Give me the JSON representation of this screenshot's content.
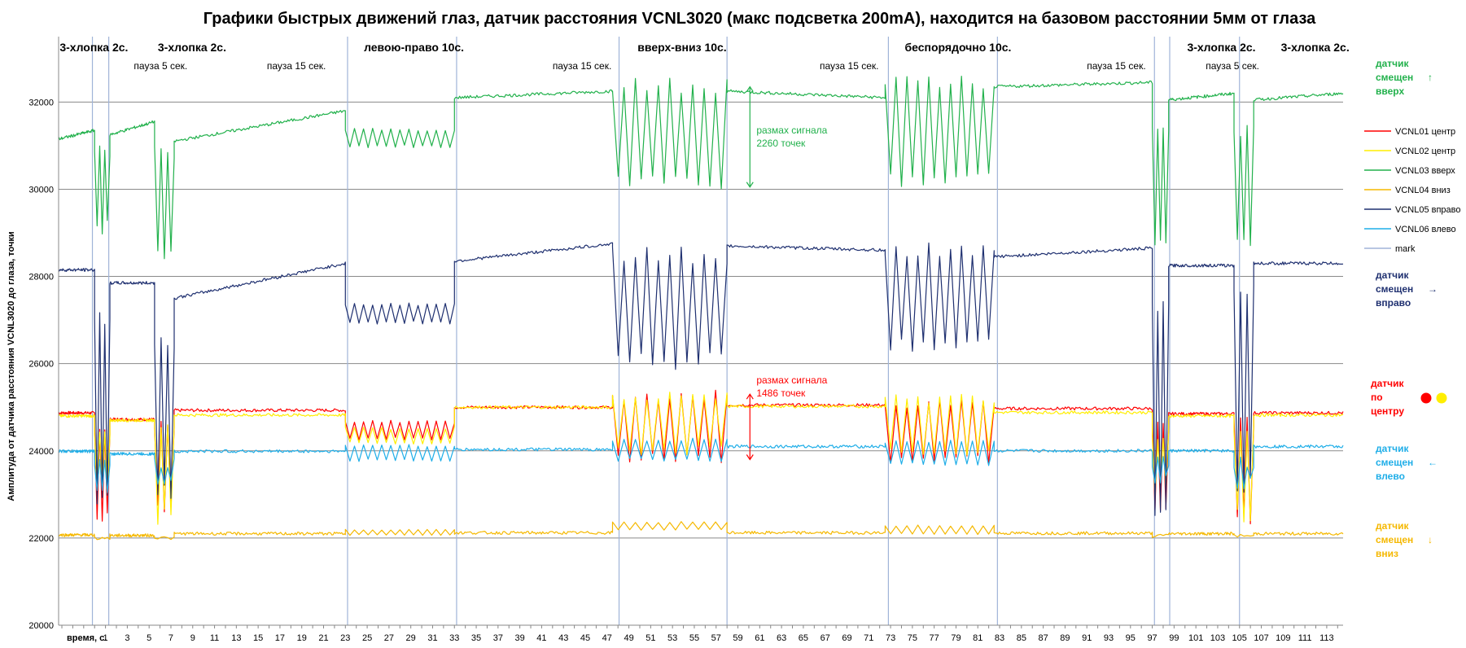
{
  "chart_data": {
    "type": "line",
    "title": "Графики быстрых движений глаз, датчик расстояния VCNL3020 (макс подсветка 200mA), находится на базовом расстоянии 5мм от глаза",
    "xlabel": "время, с.",
    "ylabel": "Амплитуда от датчика  расстояния  VCNL3020 до глаза, точки",
    "xlim": [
      -3.3,
      114.5
    ],
    "ylim": [
      20000,
      33500
    ],
    "grid": "horizontal",
    "y_ticks": [
      "20000",
      "22000",
      "24000",
      "26000",
      "28000",
      "30000",
      "32000"
    ],
    "x_ticks": [
      "1",
      "3",
      "5",
      "7",
      "9",
      "11",
      "13",
      "15",
      "17",
      "19",
      "21",
      "23",
      "25",
      "27",
      "29",
      "31",
      "33",
      "35",
      "37",
      "39",
      "41",
      "43",
      "45",
      "47",
      "49",
      "51",
      "53",
      "55",
      "57",
      "59",
      "61",
      "63",
      "65",
      "67",
      "69",
      "71",
      "73",
      "75",
      "77",
      "79",
      "81",
      "83",
      "85",
      "87",
      "89",
      "91",
      "93",
      "95",
      "97",
      "99",
      "101",
      "103",
      "105",
      "107",
      "109",
      "111",
      "113"
    ],
    "series": [
      {
        "name": "VCNL01 центр",
        "color": "#ff0000",
        "base": 24850,
        "segments": [
          {
            "x0": -3.3,
            "x1": 0,
            "mode": "flat",
            "v": 24870,
            "n": 80
          },
          {
            "x0": 0,
            "x1": 1.4,
            "mode": "blink",
            "lo": 22300,
            "hi": 24600,
            "n": 6
          },
          {
            "x0": 1.4,
            "x1": 5.5,
            "mode": "flat",
            "v": 24720,
            "n": 80
          },
          {
            "x0": 5.5,
            "x1": 7.3,
            "mode": "blink",
            "lo": 22400,
            "hi": 24800,
            "n": 6
          },
          {
            "x0": 7.3,
            "x1": 23,
            "mode": "flat",
            "v": 24930,
            "n": 140
          },
          {
            "x0": 23,
            "x1": 33,
            "mode": "osc",
            "lo": 24250,
            "hi": 24700,
            "n": 24
          },
          {
            "x0": 33,
            "x1": 47.5,
            "mode": "flat",
            "v": 25000,
            "n": 120
          },
          {
            "x0": 47.5,
            "x1": 58,
            "mode": "osc",
            "lo": 23700,
            "hi": 25400,
            "n": 20
          },
          {
            "x0": 58,
            "x1": 72.5,
            "mode": "flat",
            "v": 25050,
            "n": 120
          },
          {
            "x0": 72.5,
            "x1": 82.5,
            "mode": "osc",
            "lo": 23700,
            "hi": 25200,
            "n": 20
          },
          {
            "x0": 82.5,
            "x1": 97,
            "mode": "flat",
            "v": 24970,
            "n": 120
          },
          {
            "x0": 97,
            "x1": 98.5,
            "mode": "blink",
            "lo": 22300,
            "hi": 24800,
            "n": 6
          },
          {
            "x0": 98.5,
            "x1": 104.5,
            "mode": "flat",
            "v": 24850,
            "n": 80
          },
          {
            "x0": 104.5,
            "x1": 106.3,
            "mode": "blink",
            "lo": 22300,
            "hi": 24800,
            "n": 6
          },
          {
            "x0": 106.3,
            "x1": 114.5,
            "mode": "flat",
            "v": 24870,
            "n": 80
          }
        ]
      },
      {
        "name": "VCNL02 центр",
        "color": "#ffee00",
        "base": 24800,
        "segments": [
          {
            "x0": -3.3,
            "x1": 0,
            "mode": "flat",
            "v": 24800,
            "n": 80
          },
          {
            "x0": 0,
            "x1": 1.4,
            "mode": "blink",
            "lo": 22800,
            "hi": 24600,
            "n": 6
          },
          {
            "x0": 1.4,
            "x1": 5.5,
            "mode": "flat",
            "v": 24700,
            "n": 80
          },
          {
            "x0": 5.5,
            "x1": 7.3,
            "mode": "blink",
            "lo": 22300,
            "hi": 24600,
            "n": 6
          },
          {
            "x0": 7.3,
            "x1": 23,
            "mode": "flat",
            "v": 24820,
            "n": 140
          },
          {
            "x0": 23,
            "x1": 33,
            "mode": "osc",
            "lo": 24150,
            "hi": 24550,
            "n": 24
          },
          {
            "x0": 33,
            "x1": 47.5,
            "mode": "flat",
            "v": 25000,
            "n": 120
          },
          {
            "x0": 47.5,
            "x1": 58,
            "mode": "osc",
            "lo": 23900,
            "hi": 25350,
            "n": 20
          },
          {
            "x0": 58,
            "x1": 72.5,
            "mode": "flat",
            "v": 25020,
            "n": 120
          },
          {
            "x0": 72.5,
            "x1": 82.5,
            "mode": "osc",
            "lo": 23900,
            "hi": 25300,
            "n": 20
          },
          {
            "x0": 82.5,
            "x1": 97,
            "mode": "flat",
            "v": 24880,
            "n": 120
          },
          {
            "x0": 97,
            "x1": 98.5,
            "mode": "blink",
            "lo": 22800,
            "hi": 24500,
            "n": 6
          },
          {
            "x0": 98.5,
            "x1": 104.5,
            "mode": "flat",
            "v": 24800,
            "n": 80
          },
          {
            "x0": 104.5,
            "x1": 106.3,
            "mode": "blink",
            "lo": 22300,
            "hi": 24600,
            "n": 6
          },
          {
            "x0": 106.3,
            "x1": 114.5,
            "mode": "flat",
            "v": 24820,
            "n": 80
          }
        ]
      },
      {
        "name": "VCNL03 вверх",
        "color": "#22b14c",
        "base": 31200,
        "segments": [
          {
            "x0": -3.3,
            "x1": 0,
            "mode": "ramp",
            "v0": 31150,
            "v1": 31350,
            "n": 60
          },
          {
            "x0": 0,
            "x1": 1.4,
            "mode": "blink",
            "lo": 28900,
            "hi": 31000,
            "n": 6
          },
          {
            "x0": 1.4,
            "x1": 5.5,
            "mode": "ramp",
            "v0": 31250,
            "v1": 31550,
            "n": 60
          },
          {
            "x0": 5.5,
            "x1": 7.3,
            "mode": "blink",
            "lo": 28200,
            "hi": 31000,
            "n": 6
          },
          {
            "x0": 7.3,
            "x1": 23,
            "mode": "ramp",
            "v0": 31100,
            "v1": 31800,
            "n": 140
          },
          {
            "x0": 23,
            "x1": 33,
            "mode": "osc",
            "lo": 30950,
            "hi": 31400,
            "n": 24
          },
          {
            "x0": 33,
            "x1": 47.5,
            "mode": "ramp",
            "v0": 32100,
            "v1": 32250,
            "n": 120
          },
          {
            "x0": 47.5,
            "x1": 58,
            "mode": "osc",
            "lo": 29950,
            "hi": 32550,
            "n": 20
          },
          {
            "x0": 58,
            "x1": 72.5,
            "mode": "ramp",
            "v0": 32250,
            "v1": 32100,
            "n": 120
          },
          {
            "x0": 72.5,
            "x1": 82.5,
            "mode": "osc",
            "lo": 30000,
            "hi": 32700,
            "n": 20
          },
          {
            "x0": 82.5,
            "x1": 97,
            "mode": "ramp",
            "v0": 32350,
            "v1": 32450,
            "n": 120
          },
          {
            "x0": 97,
            "x1": 98.5,
            "mode": "blink",
            "lo": 28600,
            "hi": 31500,
            "n": 6
          },
          {
            "x0": 98.5,
            "x1": 104.5,
            "mode": "ramp",
            "v0": 32050,
            "v1": 32200,
            "n": 80
          },
          {
            "x0": 104.5,
            "x1": 106.3,
            "mode": "blink",
            "lo": 28700,
            "hi": 31500,
            "n": 6
          },
          {
            "x0": 106.3,
            "x1": 114.5,
            "mode": "ramp",
            "v0": 32050,
            "v1": 32200,
            "n": 80
          }
        ]
      },
      {
        "name": "VCNL04 вниз",
        "color": "#f5b800",
        "base": 22080,
        "segments": [
          {
            "x0": -3.3,
            "x1": 0,
            "mode": "flat",
            "v": 22070,
            "n": 80
          },
          {
            "x0": 0,
            "x1": 1.4,
            "mode": "dip",
            "v": 22000,
            "n": 6
          },
          {
            "x0": 1.4,
            "x1": 5.5,
            "mode": "flat",
            "v": 22060,
            "n": 80
          },
          {
            "x0": 5.5,
            "x1": 7.3,
            "mode": "dip",
            "v": 22000,
            "n": 6
          },
          {
            "x0": 7.3,
            "x1": 23,
            "mode": "flat",
            "v": 22100,
            "n": 140
          },
          {
            "x0": 23,
            "x1": 33,
            "mode": "osc",
            "lo": 22060,
            "hi": 22200,
            "n": 24
          },
          {
            "x0": 33,
            "x1": 47.5,
            "mode": "flat",
            "v": 22120,
            "n": 120
          },
          {
            "x0": 47.5,
            "x1": 58,
            "mode": "osc",
            "lo": 22180,
            "hi": 22380,
            "n": 20
          },
          {
            "x0": 58,
            "x1": 72.5,
            "mode": "flat",
            "v": 22120,
            "n": 120
          },
          {
            "x0": 72.5,
            "x1": 82.5,
            "mode": "osc",
            "lo": 22080,
            "hi": 22300,
            "n": 20
          },
          {
            "x0": 82.5,
            "x1": 97,
            "mode": "flat",
            "v": 22110,
            "n": 120
          },
          {
            "x0": 97,
            "x1": 98.5,
            "mode": "dip",
            "v": 22050,
            "n": 6
          },
          {
            "x0": 98.5,
            "x1": 104.5,
            "mode": "flat",
            "v": 22100,
            "n": 80
          },
          {
            "x0": 104.5,
            "x1": 106.3,
            "mode": "dip",
            "v": 22050,
            "n": 6
          },
          {
            "x0": 106.3,
            "x1": 114.5,
            "mode": "flat",
            "v": 22100,
            "n": 80
          }
        ]
      },
      {
        "name": "VCNL05 вправо",
        "color": "#1f3070",
        "base": 28100,
        "segments": [
          {
            "x0": -3.3,
            "x1": 0,
            "mode": "flat",
            "v": 28150,
            "n": 60
          },
          {
            "x0": 0,
            "x1": 1.4,
            "mode": "blink",
            "lo": 22700,
            "hi": 27200,
            "n": 6
          },
          {
            "x0": 1.4,
            "x1": 5.5,
            "mode": "flat",
            "v": 27850,
            "n": 60
          },
          {
            "x0": 5.5,
            "x1": 7.3,
            "mode": "blink",
            "lo": 22900,
            "hi": 26600,
            "n": 6
          },
          {
            "x0": 7.3,
            "x1": 23,
            "mode": "ramp",
            "v0": 27500,
            "v1": 28300,
            "n": 140
          },
          {
            "x0": 23,
            "x1": 33,
            "mode": "osc",
            "lo": 26900,
            "hi": 27400,
            "n": 24
          },
          {
            "x0": 33,
            "x1": 47.5,
            "mode": "ramp",
            "v0": 28350,
            "v1": 28750,
            "n": 120
          },
          {
            "x0": 47.5,
            "x1": 58,
            "mode": "osc",
            "lo": 25850,
            "hi": 28700,
            "n": 20
          },
          {
            "x0": 58,
            "x1": 72.5,
            "mode": "ramp",
            "v0": 28700,
            "v1": 28600,
            "n": 120
          },
          {
            "x0": 72.5,
            "x1": 82.5,
            "mode": "osc",
            "lo": 26200,
            "hi": 28800,
            "n": 20
          },
          {
            "x0": 82.5,
            "x1": 97,
            "mode": "ramp",
            "v0": 28450,
            "v1": 28650,
            "n": 120
          },
          {
            "x0": 97,
            "x1": 98.5,
            "mode": "blink",
            "lo": 22300,
            "hi": 27500,
            "n": 6
          },
          {
            "x0": 98.5,
            "x1": 104.5,
            "mode": "flat",
            "v": 28250,
            "n": 80
          },
          {
            "x0": 104.5,
            "x1": 106.3,
            "mode": "blink",
            "lo": 23000,
            "hi": 27800,
            "n": 6
          },
          {
            "x0": 106.3,
            "x1": 114.5,
            "mode": "flat",
            "v": 28300,
            "n": 80
          }
        ]
      },
      {
        "name": "VCNL06 влево",
        "color": "#1faee8",
        "base": 24000,
        "segments": [
          {
            "x0": -3.3,
            "x1": 0,
            "mode": "flat",
            "v": 23990,
            "n": 80
          },
          {
            "x0": 0,
            "x1": 1.4,
            "mode": "blink",
            "lo": 23000,
            "hi": 23900,
            "n": 6
          },
          {
            "x0": 1.4,
            "x1": 5.5,
            "mode": "flat",
            "v": 23930,
            "n": 80
          },
          {
            "x0": 5.5,
            "x1": 7.3,
            "mode": "blink",
            "lo": 23200,
            "hi": 23900,
            "n": 6
          },
          {
            "x0": 7.3,
            "x1": 23,
            "mode": "flat",
            "v": 23990,
            "n": 140
          },
          {
            "x0": 23,
            "x1": 33,
            "mode": "osc",
            "lo": 23750,
            "hi": 24150,
            "n": 24
          },
          {
            "x0": 33,
            "x1": 47.5,
            "mode": "flat",
            "v": 24030,
            "n": 120
          },
          {
            "x0": 47.5,
            "x1": 58,
            "mode": "osc",
            "lo": 23750,
            "hi": 24300,
            "n": 20
          },
          {
            "x0": 58,
            "x1": 72.5,
            "mode": "flat",
            "v": 24100,
            "n": 120
          },
          {
            "x0": 72.5,
            "x1": 82.5,
            "mode": "osc",
            "lo": 23650,
            "hi": 24250,
            "n": 20
          },
          {
            "x0": 82.5,
            "x1": 97,
            "mode": "flat",
            "v": 24000,
            "n": 120
          },
          {
            "x0": 97,
            "x1": 98.5,
            "mode": "blink",
            "lo": 23100,
            "hi": 23900,
            "n": 6
          },
          {
            "x0": 98.5,
            "x1": 104.5,
            "mode": "flat",
            "v": 24000,
            "n": 80
          },
          {
            "x0": 104.5,
            "x1": 106.3,
            "mode": "blink",
            "lo": 23100,
            "hi": 23900,
            "n": 6
          },
          {
            "x0": 106.3,
            "x1": 114.5,
            "mode": "flat",
            "v": 24100,
            "n": 80
          }
        ]
      },
      {
        "name": "mark",
        "color": "#a0b4d8",
        "x": [
          -0.2,
          1.3,
          23.2,
          33.2,
          48.1,
          58.0,
          72.8,
          82.8,
          97.2,
          98.6,
          105.0
        ]
      }
    ],
    "segments": [
      {
        "label": "3-хлопка 2с.",
        "x": -3.2
      },
      {
        "label": "3-хлопка 2с.",
        "x": 5.8
      },
      {
        "label": "левою-право 10с.",
        "x": 24.7
      },
      {
        "label": "вверх-вниз 10с.",
        "x": 49.8
      },
      {
        "label": "беспорядочно 10с.",
        "x": 74.3
      },
      {
        "label": "3-хлопка 2с.",
        "x": 100.2
      },
      {
        "label": "3-хлопка   2с.",
        "x": 108.8
      }
    ],
    "pauses": [
      {
        "label": "пауза 5 сек.",
        "x": 3.6
      },
      {
        "label": "пауза 15 сек.",
        "x": 15.8
      },
      {
        "label": "пауза 15 сек.",
        "x": 42.0
      },
      {
        "label": "пауза 15 сек.",
        "x": 66.5
      },
      {
        "label": "пауза 15 сек.",
        "x": 91.0
      },
      {
        "label": "пауза 5 сек.",
        "x": 101.9
      }
    ],
    "annotations": [
      {
        "lines": [
          "размах сигнала",
          "2260 точек"
        ],
        "x": 60.7,
        "y": 31280,
        "color": "#22b14c",
        "arrow": [
          32350,
          30050
        ],
        "arrow_x": 60.1
      },
      {
        "lines": [
          "размах сигнала",
          "1486 точек"
        ],
        "x": 60.7,
        "y": 25550,
        "color": "#ff0000",
        "arrow": [
          25300,
          23800
        ],
        "arrow_x": 60.1
      }
    ],
    "legend": {
      "position": "right"
    },
    "side_labels": [
      {
        "lines": [
          "датчик",
          "смещен",
          "вверх"
        ],
        "arrow": "↑",
        "color": "#22b14c"
      },
      {
        "lines": [
          "датчик",
          "смещен",
          "вправо"
        ],
        "arrow": "→",
        "color": "#1f3070"
      },
      {
        "lines": [
          "датчик",
          "по",
          "центру"
        ],
        "arrow": "",
        "color": "#ff0000",
        "dots": [
          "#ff0000",
          "#ffee00"
        ]
      },
      {
        "lines": [
          "датчик",
          "смещен",
          "влево"
        ],
        "arrow": "←",
        "color": "#1faee8"
      },
      {
        "lines": [
          "датчик",
          "смещен",
          "вниз"
        ],
        "arrow": "↓",
        "color": "#f5b800"
      }
    ]
  }
}
